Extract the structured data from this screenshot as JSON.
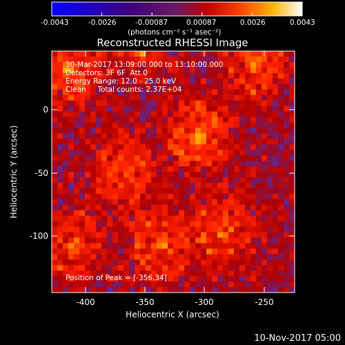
{
  "colorbar": {
    "ticks": [
      "-0.0043",
      "-0.0026",
      "-0.00087",
      "0.00087",
      "0.0026",
      "0.0043"
    ],
    "units_label": "(photons cm⁻² s⁻¹ asec⁻²)",
    "colors": [
      "#0000ff",
      "#400080",
      "#5a2aa0",
      "#b00000",
      "#ff2000",
      "#ff8000",
      "#ffd200",
      "#ffffff"
    ]
  },
  "plot": {
    "title": "Reconstructed RHESSI Image",
    "xlabel": "Heliocentric X (arcsec)",
    "ylabel": "Heliocentric Y (arcsec)",
    "xticks": [
      "-400",
      "-350",
      "-300",
      "-250"
    ],
    "yticks": [
      "0",
      "-50",
      "-100"
    ]
  },
  "info": {
    "line1": "30-Mar-2017 13:09:00.000 to 13:10:00.000",
    "line2": "Detectors: 3F 6F  Att 0",
    "line3": "Energy Range: 12.0 - 25.0 keV",
    "line4": "Clean     Total counts: 2.37E+04",
    "peak": "Position of Peak = [-356,34]"
  },
  "footer": {
    "timestamp": "10-Nov-2017 05:00"
  },
  "chart_data": {
    "type": "heatmap",
    "title": "Reconstructed RHESSI Image",
    "xlabel": "Heliocentric X (arcsec)",
    "ylabel": "Heliocentric Y (arcsec)",
    "xlim": [
      -428,
      -233
    ],
    "ylim": [
      -147,
      17
    ],
    "xticks": [
      -400,
      -350,
      -300,
      -250
    ],
    "yticks": [
      0,
      -50,
      -100
    ],
    "value_range": [
      -0.0043,
      0.0043
    ],
    "bright_regions": [
      {
        "x": -356,
        "y": 34,
        "peak": 0.0043
      },
      {
        "x": -415,
        "y": 5,
        "peak": 0.003
      },
      {
        "x": -265,
        "y": 10,
        "peak": 0.003
      },
      {
        "x": -310,
        "y": -40,
        "peak": 0.0035
      },
      {
        "x": -370,
        "y": -65,
        "peak": 0.003
      },
      {
        "x": -340,
        "y": -115,
        "peak": 0.003
      },
      {
        "x": -290,
        "y": -105,
        "peak": 0.0028
      },
      {
        "x": -410,
        "y": -115,
        "peak": 0.0025
      }
    ]
  }
}
